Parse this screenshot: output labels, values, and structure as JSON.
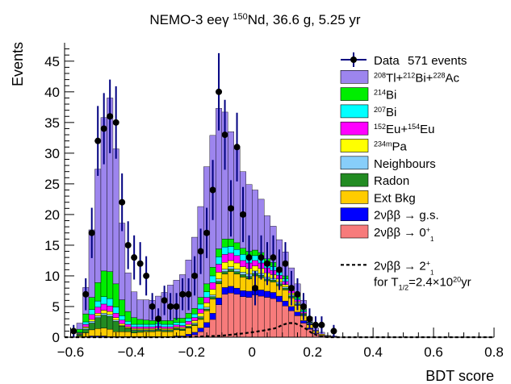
{
  "chart_data": {
    "type": "bar",
    "title": "NEMO-3 eeγ ¹⁵⁰Nd, 36.6 g, 5.25 yr",
    "title_parts": {
      "pre": "NEMO-3 eeγ ",
      "sup": "150",
      "post": "Nd, 36.6 g, 5.25 yr"
    },
    "xlabel": "BDT score",
    "ylabel": "Events",
    "xlim": [
      -0.62,
      0.8
    ],
    "ylim": [
      0,
      48
    ],
    "bin_width": 0.02,
    "x_ticks": [
      -0.6,
      -0.4,
      -0.2,
      0,
      0.2,
      0.4,
      0.6,
      0.8
    ],
    "x_tick_labels": [
      "−0.6",
      "−0.4",
      "−0.2",
      "0",
      "0.2",
      "0.4",
      "0.6",
      "0.8"
    ],
    "y_ticks": [
      0,
      5,
      10,
      15,
      20,
      25,
      30,
      35,
      40,
      45
    ],
    "y_tick_labels": [
      "0",
      "5",
      "10",
      "15",
      "20",
      "25",
      "30",
      "35",
      "40",
      "45"
    ],
    "legend_position": "top-right",
    "bin_centers": [
      -0.61,
      -0.59,
      -0.57,
      -0.55,
      -0.53,
      -0.51,
      -0.49,
      -0.47,
      -0.45,
      -0.43,
      -0.41,
      -0.39,
      -0.37,
      -0.35,
      -0.33,
      -0.31,
      -0.29,
      -0.27,
      -0.25,
      -0.23,
      -0.21,
      -0.19,
      -0.17,
      -0.15,
      -0.13,
      -0.11,
      -0.09,
      -0.07,
      -0.05,
      -0.03,
      -0.01,
      0.01,
      0.03,
      0.05,
      0.07,
      0.09,
      0.11,
      0.13,
      0.15,
      0.17,
      0.19,
      0.21,
      0.23,
      0.25,
      0.27,
      0.29,
      0.31,
      0.33,
      0.35,
      0.37,
      0.39,
      0.41,
      0.43,
      0.45,
      0.47,
      0.49,
      0.51,
      0.53,
      0.55,
      0.57,
      0.59,
      0.61,
      0.63,
      0.65,
      0.67,
      0.69,
      0.71,
      0.73,
      0.75,
      0.77,
      0.79
    ],
    "series": [
      {
        "label_html": "2νββ → 0<tspan baseline-shift=\"super\" font-size=\"9\">+</tspan><tspan baseline-shift=\"-6\" font-size=\"8\">1</tspan>",
        "color": "#f77b7b",
        "values": [
          0,
          0,
          0,
          0,
          0,
          0,
          0,
          0,
          0,
          0,
          0,
          0,
          0,
          0,
          0,
          0,
          0,
          0,
          0,
          0,
          0.2,
          0.4,
          0.9,
          1.6,
          2.9,
          5.3,
          7.0,
          7.2,
          7.0,
          6.6,
          6.5,
          6.9,
          6.7,
          6.5,
          6.3,
          5.8,
          5.1,
          4.3,
          3.5,
          2.3,
          1.3,
          0.6,
          0.2,
          0.1,
          0,
          0,
          0,
          0,
          0,
          0,
          0,
          0,
          0,
          0,
          0,
          0,
          0,
          0,
          0,
          0,
          0,
          0,
          0,
          0,
          0,
          0,
          0,
          0,
          0,
          0,
          0
        ]
      },
      {
        "label_html": "2νββ → g.s.",
        "color": "#0000ff",
        "values": [
          0,
          0,
          0,
          0.1,
          0.2,
          0.2,
          0.2,
          0.1,
          0.1,
          0.1,
          0.1,
          0.1,
          0.1,
          0.1,
          0.1,
          0.1,
          0.1,
          0.1,
          0.2,
          0.2,
          0.3,
          0.4,
          0.6,
          0.8,
          1.0,
          1.1,
          1.1,
          1.1,
          1.0,
          1.0,
          1.0,
          1.0,
          1.0,
          1.0,
          1.0,
          0.9,
          0.8,
          0.7,
          0.6,
          0.4,
          0.2,
          0.1,
          0.1,
          0,
          0,
          0,
          0,
          0,
          0,
          0,
          0,
          0,
          0,
          0,
          0,
          0,
          0,
          0,
          0,
          0,
          0,
          0,
          0,
          0,
          0,
          0,
          0,
          0,
          0,
          0,
          0
        ]
      },
      {
        "label_html": "Ext Bkg",
        "color": "#ffcc00",
        "values": [
          0,
          0,
          0.2,
          0.6,
          1.0,
          1.2,
          1.3,
          1.2,
          0.8,
          0.8,
          0.8,
          0.6,
          0.7,
          0.8,
          0.8,
          0.9,
          0.8,
          0.8,
          1.0,
          0.9,
          1.0,
          1.1,
          1.4,
          1.9,
          2.3,
          2.3,
          2.2,
          2.4,
          2.3,
          2.2,
          2.0,
          2.1,
          2.0,
          1.7,
          1.7,
          1.7,
          1.8,
          1.4,
          1.1,
          0.8,
          0.5,
          0.3,
          0.2,
          0.1,
          0.1,
          0,
          0,
          0,
          0,
          0,
          0,
          0,
          0,
          0,
          0,
          0,
          0,
          0,
          0,
          0,
          0,
          0,
          0,
          0,
          0,
          0,
          0,
          0,
          0,
          0,
          0
        ]
      },
      {
        "label_html": "Radon",
        "color": "#228b22",
        "values": [
          0,
          0,
          0.2,
          0.6,
          1.1,
          1.8,
          2.1,
          2.1,
          1.7,
          0.9,
          0.5,
          0.4,
          0.3,
          0.2,
          0.2,
          0.2,
          0.2,
          0.2,
          0.2,
          0.2,
          0.2,
          0.2,
          0.3,
          0.3,
          0.4,
          0.4,
          0.4,
          0.4,
          0.4,
          0.4,
          0.4,
          0.4,
          0.4,
          0.3,
          0.3,
          0.3,
          0.3,
          0.3,
          0.2,
          0.2,
          0.1,
          0.1,
          0,
          0,
          0,
          0,
          0,
          0,
          0,
          0,
          0,
          0,
          0,
          0,
          0,
          0,
          0,
          0,
          0,
          0,
          0,
          0,
          0,
          0,
          0,
          0,
          0,
          0,
          0,
          0,
          0
        ]
      },
      {
        "label_html": "Neighbours",
        "color": "#87cefa",
        "values": [
          0,
          0,
          0.1,
          0.2,
          0.3,
          0.3,
          0.3,
          0.3,
          0.2,
          0.1,
          0.1,
          0.1,
          0.1,
          0.1,
          0.1,
          0.1,
          0.1,
          0.1,
          0.1,
          0.1,
          0.1,
          0.2,
          0.2,
          0.3,
          0.3,
          0.4,
          0.4,
          0.4,
          0.4,
          0.4,
          0.4,
          0.4,
          0.3,
          0.3,
          0.3,
          0.3,
          0.2,
          0.2,
          0.2,
          0.1,
          0.1,
          0,
          0,
          0,
          0,
          0,
          0,
          0,
          0,
          0,
          0,
          0,
          0,
          0,
          0,
          0,
          0,
          0,
          0,
          0,
          0,
          0,
          0,
          0,
          0,
          0,
          0,
          0,
          0,
          0,
          0
        ]
      },
      {
        "label_html": "<tspan baseline-shift=\"super\" font-size=\"9\">234m</tspan>Pa",
        "color": "#ffff00",
        "values": [
          0,
          0,
          0.1,
          0.2,
          0.3,
          0.4,
          0.5,
          0.5,
          0.4,
          0.3,
          0.2,
          0.2,
          0.2,
          0.2,
          0.2,
          0.2,
          0.2,
          0.2,
          0.2,
          0.2,
          0.3,
          0.4,
          0.5,
          0.7,
          0.9,
          1.1,
          1.1,
          1.0,
          1.0,
          0.9,
          0.9,
          0.8,
          0.8,
          0.7,
          0.6,
          0.5,
          0.4,
          0.3,
          0.2,
          0.1,
          0,
          0,
          0,
          0,
          0,
          0,
          0,
          0,
          0,
          0,
          0,
          0,
          0,
          0,
          0,
          0,
          0,
          0,
          0,
          0,
          0,
          0,
          0,
          0,
          0,
          0,
          0,
          0,
          0,
          0,
          0
        ]
      },
      {
        "label_html": "<tspan baseline-shift=\"super\" font-size=\"9\">152</tspan>Eu+<tspan baseline-shift=\"super\" font-size=\"9\">154</tspan>Eu",
        "color": "#ff00ff",
        "values": [
          0,
          0,
          0.1,
          0.4,
          0.8,
          1.0,
          1.0,
          0.9,
          0.7,
          0.6,
          0.4,
          0.3,
          0.3,
          0.3,
          0.3,
          0.3,
          0.3,
          0.3,
          0.3,
          0.3,
          0.5,
          0.5,
          0.7,
          0.9,
          1.1,
          1.3,
          1.3,
          1.2,
          1.2,
          1.0,
          0.9,
          0.9,
          0.9,
          0.8,
          0.7,
          0.6,
          0.5,
          0.4,
          0.3,
          0.2,
          0.1,
          0,
          0,
          0,
          0,
          0,
          0,
          0,
          0,
          0,
          0,
          0,
          0,
          0,
          0,
          0,
          0,
          0,
          0,
          0,
          0,
          0,
          0,
          0,
          0,
          0,
          0,
          0,
          0,
          0,
          0
        ]
      },
      {
        "label_html": "<tspan baseline-shift=\"super\" font-size=\"9\">207</tspan>Bi",
        "color": "#00ffff",
        "values": [
          0,
          0,
          0.1,
          0.4,
          0.8,
          1.0,
          1.2,
          1.2,
          1.0,
          0.7,
          0.5,
          0.4,
          0.4,
          0.4,
          0.4,
          0.4,
          0.4,
          0.4,
          0.4,
          0.5,
          0.5,
          0.6,
          0.8,
          0.9,
          1.1,
          1.2,
          1.2,
          1.1,
          1.0,
          1.0,
          0.9,
          0.8,
          0.8,
          0.7,
          0.6,
          0.5,
          0.4,
          0.3,
          0.2,
          0.2,
          0.1,
          0,
          0,
          0,
          0,
          0,
          0,
          0,
          0,
          0,
          0,
          0,
          0,
          0,
          0,
          0,
          0,
          0,
          0,
          0,
          0,
          0,
          0,
          0,
          0,
          0,
          0,
          0,
          0,
          0,
          0
        ]
      },
      {
        "label_html": "<tspan baseline-shift=\"super\" font-size=\"9\">214</tspan>Bi",
        "color": "#00ee00",
        "values": [
          0,
          0,
          0.5,
          1.3,
          2.0,
          3.0,
          4.2,
          4.4,
          3.8,
          2.6,
          1.6,
          1.1,
          0.8,
          0.7,
          0.6,
          0.6,
          0.6,
          0.6,
          0.7,
          0.7,
          0.8,
          0.9,
          1.1,
          1.3,
          1.4,
          1.3,
          1.3,
          1.2,
          1.1,
          1.0,
          1.0,
          0.9,
          0.9,
          0.8,
          0.7,
          0.6,
          0.5,
          0.4,
          0.3,
          0.2,
          0.1,
          0,
          0,
          0,
          0,
          0,
          0,
          0,
          0,
          0,
          0,
          0,
          0,
          0,
          0,
          0,
          0,
          0,
          0,
          0,
          0,
          0,
          0,
          0,
          0,
          0,
          0,
          0,
          0,
          0,
          0
        ]
      },
      {
        "label_html": "<tspan baseline-shift=\"super\" font-size=\"9\">208</tspan>Tl+<tspan baseline-shift=\"super\" font-size=\"9\">212</tspan>Bi+<tspan baseline-shift=\"super\" font-size=\"9\">228</tspan>Ac",
        "color": "#9d85ee",
        "values": [
          0,
          0,
          1.0,
          4.3,
          11.0,
          18.5,
          25.0,
          28.3,
          22.0,
          12.5,
          6.3,
          4.2,
          3.2,
          3.3,
          3.3,
          3.9,
          4.6,
          5.8,
          6.2,
          7.1,
          8.7,
          11.6,
          14.8,
          19.1,
          21.5,
          22.9,
          20.7,
          17.5,
          15.6,
          12.5,
          10.9,
          9.8,
          8.7,
          7.0,
          5.9,
          4.7,
          3.9,
          3.0,
          2.1,
          1.5,
          0.8,
          0.4,
          0.3,
          0.1,
          0.1,
          0,
          0,
          0,
          0,
          0,
          0,
          0,
          0,
          0,
          0,
          0,
          0,
          0,
          0,
          0,
          0,
          0,
          0,
          0,
          0,
          0,
          0,
          0,
          0,
          0,
          0
        ]
      }
    ],
    "data_series": {
      "label": "Data",
      "annotation": "571 events",
      "points": [
        {
          "x": -0.59,
          "y": 1,
          "err": 1.0
        },
        {
          "x": -0.55,
          "y": 7,
          "err": 2.6
        },
        {
          "x": -0.53,
          "y": 17,
          "err": 4.1
        },
        {
          "x": -0.51,
          "y": 32,
          "err": 5.7
        },
        {
          "x": -0.49,
          "y": 34,
          "err": 5.8
        },
        {
          "x": -0.47,
          "y": 36,
          "err": 6.0
        },
        {
          "x": -0.45,
          "y": 35,
          "err": 5.9
        },
        {
          "x": -0.43,
          "y": 22,
          "err": 4.7
        },
        {
          "x": -0.41,
          "y": 15,
          "err": 3.9
        },
        {
          "x": -0.39,
          "y": 13,
          "err": 3.6
        },
        {
          "x": -0.37,
          "y": 12,
          "err": 3.5
        },
        {
          "x": -0.35,
          "y": 10,
          "err": 3.2
        },
        {
          "x": -0.33,
          "y": 5,
          "err": 2.2
        },
        {
          "x": -0.31,
          "y": 3,
          "err": 1.7
        },
        {
          "x": -0.29,
          "y": 6,
          "err": 2.4
        },
        {
          "x": -0.27,
          "y": 5,
          "err": 2.2
        },
        {
          "x": -0.25,
          "y": 5,
          "err": 2.2
        },
        {
          "x": -0.23,
          "y": 7,
          "err": 2.6
        },
        {
          "x": -0.21,
          "y": 7,
          "err": 2.6
        },
        {
          "x": -0.19,
          "y": 10,
          "err": 3.2
        },
        {
          "x": -0.17,
          "y": 14,
          "err": 3.7
        },
        {
          "x": -0.15,
          "y": 17,
          "err": 4.1
        },
        {
          "x": -0.13,
          "y": 24,
          "err": 4.9
        },
        {
          "x": -0.11,
          "y": 40,
          "err": 6.3
        },
        {
          "x": -0.09,
          "y": 33,
          "err": 5.7
        },
        {
          "x": -0.07,
          "y": 21,
          "err": 4.6
        },
        {
          "x": -0.05,
          "y": 31,
          "err": 5.6
        },
        {
          "x": -0.03,
          "y": 20,
          "err": 4.5
        },
        {
          "x": -0.01,
          "y": 13,
          "err": 3.6
        },
        {
          "x": 0.01,
          "y": 8,
          "err": 2.8
        },
        {
          "x": 0.03,
          "y": 13,
          "err": 3.6
        },
        {
          "x": 0.05,
          "y": 12,
          "err": 3.5
        },
        {
          "x": 0.07,
          "y": 13,
          "err": 3.6
        },
        {
          "x": 0.09,
          "y": 11,
          "err": 3.3
        },
        {
          "x": 0.11,
          "y": 12,
          "err": 3.5
        },
        {
          "x": 0.13,
          "y": 8,
          "err": 2.8
        },
        {
          "x": 0.15,
          "y": 7,
          "err": 2.6
        },
        {
          "x": 0.17,
          "y": 5,
          "err": 2.2
        },
        {
          "x": 0.19,
          "y": 3,
          "err": 1.7
        },
        {
          "x": 0.21,
          "y": 2,
          "err": 1.4
        },
        {
          "x": 0.23,
          "y": 2,
          "err": 1.4
        },
        {
          "x": 0.27,
          "y": 1,
          "err": 1.0
        }
      ]
    },
    "signal_curve": {
      "label_html": "2νββ → 2<tspan baseline-shift=\"super\" font-size=\"9\">+</tspan><tspan baseline-shift=\"-6\" font-size=\"8\">1</tspan>",
      "note_html": "for T<tspan baseline-shift=\"sub\" font-size=\"9\">1/2</tspan>=2.4×10<tspan baseline-shift=\"super\" font-size=\"9\">20</tspan>yr",
      "style": "dashed",
      "points": [
        [
          -0.62,
          0
        ],
        [
          -0.3,
          0
        ],
        [
          -0.2,
          0.05
        ],
        [
          -0.1,
          0.25
        ],
        [
          -0.05,
          0.5
        ],
        [
          0,
          0.8
        ],
        [
          0.04,
          1.1
        ],
        [
          0.08,
          1.5
        ],
        [
          0.1,
          2.0
        ],
        [
          0.12,
          2.3
        ],
        [
          0.14,
          2.3
        ],
        [
          0.16,
          1.9
        ],
        [
          0.18,
          1.3
        ],
        [
          0.2,
          0.6
        ],
        [
          0.22,
          0.2
        ],
        [
          0.24,
          0.05
        ],
        [
          0.26,
          0
        ],
        [
          0.8,
          0
        ]
      ]
    }
  }
}
